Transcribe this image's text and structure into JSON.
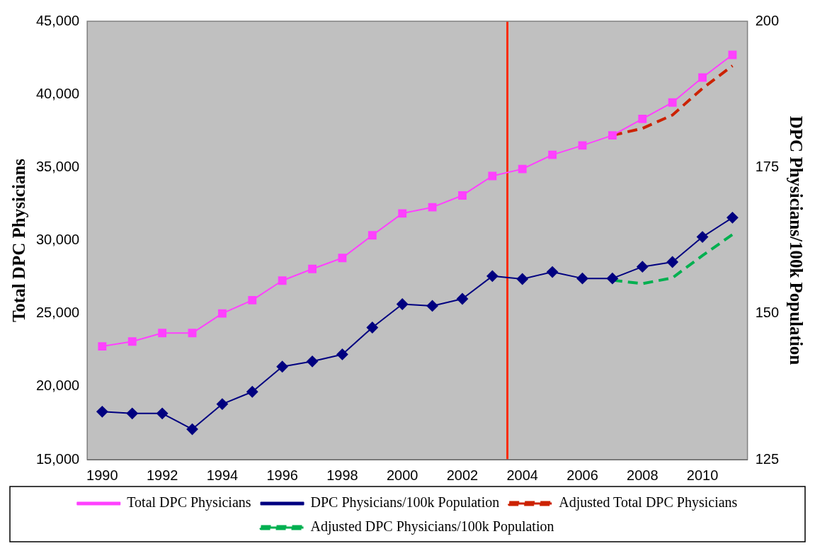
{
  "chart_data": {
    "type": "line",
    "ylabel": "Total DPC Physicians",
    "y2label": "DPC Physicians/100k Population",
    "x": [
      1990,
      1991,
      1992,
      1993,
      1994,
      1995,
      1996,
      1997,
      1998,
      1999,
      2000,
      2001,
      2002,
      2003,
      2004,
      2005,
      2006,
      2007,
      2008,
      2009,
      2010,
      2011
    ],
    "xlim": [
      1989.5,
      2011.5
    ],
    "xticks": [
      1990,
      1992,
      1994,
      1996,
      1998,
      2000,
      2002,
      2004,
      2006,
      2008,
      2010
    ],
    "ylim": [
      15000,
      45000
    ],
    "yticks": [
      {
        "value": 15000,
        "label": "15,000"
      },
      {
        "value": 20000,
        "label": "20,000"
      },
      {
        "value": 25000,
        "label": "25,000"
      },
      {
        "value": 30000,
        "label": "30,000"
      },
      {
        "value": 35000,
        "label": "35,000"
      },
      {
        "value": 40000,
        "label": "40,000"
      },
      {
        "value": 45000,
        "label": "45,000"
      }
    ],
    "y2lim": [
      125,
      200
    ],
    "y2ticks": [
      125,
      150,
      175,
      200
    ],
    "grid": false,
    "legend": "bottom",
    "ref_lines": [
      {
        "axis": "x",
        "value": 2003.5,
        "color": "#ff2a00",
        "line_style": "solid"
      }
    ],
    "series": [
      {
        "name": "Total DPC Physicians",
        "color": "#ff40ff",
        "marker": "square",
        "line_style": "solid",
        "values": [
          22750,
          23080,
          23660,
          23660,
          25000,
          25910,
          27250,
          28050,
          28800,
          30350,
          31850,
          32270,
          33080,
          34410,
          34890,
          35860,
          36500,
          37190,
          38320,
          39440,
          41150,
          42700
        ]
      },
      {
        "name": "DPC Physicians/100k Population",
        "color": "#000080",
        "marker": "diamond",
        "line_style": "solid",
        "axis": "y2",
        "values": [
          133.2,
          132.9,
          132.9,
          130.2,
          134.5,
          136.6,
          140.9,
          141.8,
          143.0,
          147.6,
          151.6,
          151.3,
          152.5,
          156.4,
          155.9,
          157.1,
          156.0,
          156.0,
          158.0,
          158.8,
          163.1,
          166.4
        ]
      },
      {
        "name": "Adjusted Total DPC Physicians",
        "color": "#cc2200",
        "marker": "none",
        "line_style": "dashed",
        "x": [
          2007,
          2008,
          2009,
          2010,
          2011
        ],
        "values": [
          37190,
          37670,
          38580,
          40400,
          41950
        ]
      },
      {
        "name": "Adjusted DPC Physicians/100k Population",
        "color": "#00b050",
        "marker": "none",
        "line_style": "dashed",
        "axis": "y2",
        "x": [
          2007,
          2008,
          2009,
          2010,
          2011
        ],
        "values": [
          155.7,
          155.1,
          156.1,
          159.9,
          163.5
        ]
      }
    ]
  }
}
